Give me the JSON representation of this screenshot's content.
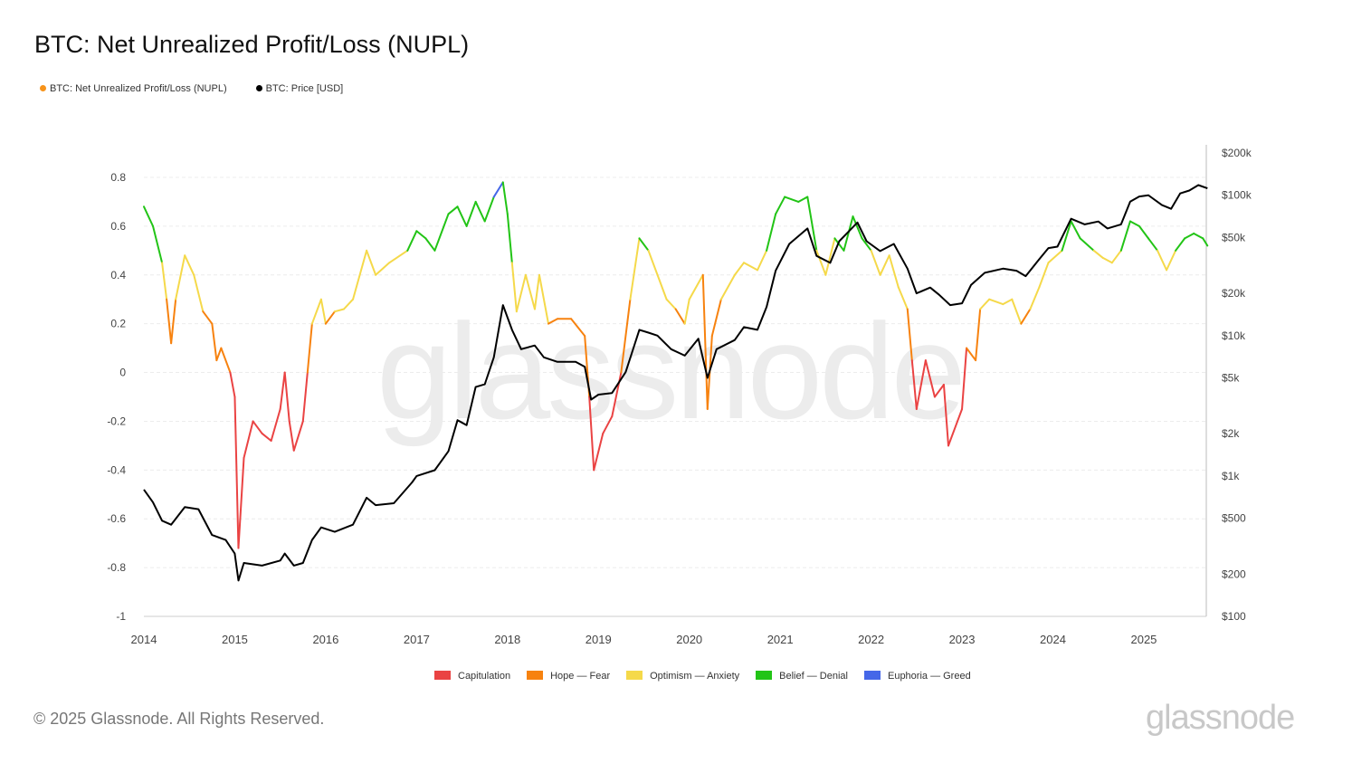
{
  "chart_data": {
    "type": "line",
    "title": "BTC: Net Unrealized Profit/Loss (NUPL)",
    "legend": [
      {
        "label": "BTC: Net Unrealized Profit/Loss (NUPL)",
        "color": "#f7931a"
      },
      {
        "label": "BTC: Price [USD]",
        "color": "#000000"
      }
    ],
    "zones": [
      {
        "label": "Capitulation",
        "color": "#ea4343",
        "min": -1,
        "max": 0
      },
      {
        "label": "Hope — Fear",
        "color": "#f7820f",
        "min": 0,
        "max": 0.25
      },
      {
        "label": "Optimism — Anxiety",
        "color": "#f5d94a",
        "min": 0.25,
        "max": 0.5
      },
      {
        "label": "Belief — Denial",
        "color": "#22c416",
        "min": 0.5,
        "max": 0.75
      },
      {
        "label": "Euphoria — Greed",
        "color": "#4567e8",
        "min": 0.75,
        "max": 1
      }
    ],
    "x_ticks": [
      "2014",
      "2015",
      "2016",
      "2017",
      "2018",
      "2019",
      "2020",
      "2021",
      "2022",
      "2023",
      "2024",
      "2025"
    ],
    "xlim": [
      2014,
      2025.7
    ],
    "y_left_ticks": [
      "0.8",
      "0.6",
      "0.4",
      "0.2",
      "0",
      "-0.2",
      "-0.4",
      "-0.6",
      "-0.8",
      "-1"
    ],
    "ylim_left": [
      -1,
      0.8
    ],
    "y_right_ticks": [
      {
        "label": "$200k",
        "value": 200000
      },
      {
        "label": "$100k",
        "value": 100000
      },
      {
        "label": "$50k",
        "value": 50000
      },
      {
        "label": "$20k",
        "value": 20000
      },
      {
        "label": "$10k",
        "value": 10000
      },
      {
        "label": "$5k",
        "value": 5000
      },
      {
        "label": "$2k",
        "value": 2000
      },
      {
        "label": "$1k",
        "value": 1000
      },
      {
        "label": "$500",
        "value": 500
      },
      {
        "label": "$200",
        "value": 200
      },
      {
        "label": "$100",
        "value": 100
      }
    ],
    "ylim_right_log": [
      100,
      200000
    ],
    "nupl": [
      [
        2014.0,
        0.68
      ],
      [
        2014.1,
        0.6
      ],
      [
        2014.2,
        0.45
      ],
      [
        2014.25,
        0.3
      ],
      [
        2014.3,
        0.12
      ],
      [
        2014.35,
        0.3
      ],
      [
        2014.45,
        0.48
      ],
      [
        2014.55,
        0.4
      ],
      [
        2014.65,
        0.25
      ],
      [
        2014.75,
        0.2
      ],
      [
        2014.8,
        0.05
      ],
      [
        2014.85,
        0.1
      ],
      [
        2014.95,
        0.0
      ],
      [
        2015.0,
        -0.1
      ],
      [
        2015.04,
        -0.72
      ],
      [
        2015.1,
        -0.35
      ],
      [
        2015.2,
        -0.2
      ],
      [
        2015.3,
        -0.25
      ],
      [
        2015.4,
        -0.28
      ],
      [
        2015.5,
        -0.15
      ],
      [
        2015.55,
        0.0
      ],
      [
        2015.6,
        -0.2
      ],
      [
        2015.65,
        -0.32
      ],
      [
        2015.75,
        -0.2
      ],
      [
        2015.8,
        0.0
      ],
      [
        2015.85,
        0.2
      ],
      [
        2015.95,
        0.3
      ],
      [
        2016.0,
        0.2
      ],
      [
        2016.1,
        0.25
      ],
      [
        2016.2,
        0.26
      ],
      [
        2016.3,
        0.3
      ],
      [
        2016.45,
        0.5
      ],
      [
        2016.55,
        0.4
      ],
      [
        2016.7,
        0.45
      ],
      [
        2016.9,
        0.5
      ],
      [
        2017.0,
        0.58
      ],
      [
        2017.1,
        0.55
      ],
      [
        2017.2,
        0.5
      ],
      [
        2017.35,
        0.65
      ],
      [
        2017.45,
        0.68
      ],
      [
        2017.55,
        0.6
      ],
      [
        2017.65,
        0.7
      ],
      [
        2017.75,
        0.62
      ],
      [
        2017.85,
        0.72
      ],
      [
        2017.95,
        0.78
      ],
      [
        2018.0,
        0.65
      ],
      [
        2018.05,
        0.45
      ],
      [
        2018.1,
        0.25
      ],
      [
        2018.2,
        0.4
      ],
      [
        2018.3,
        0.26
      ],
      [
        2018.35,
        0.4
      ],
      [
        2018.45,
        0.2
      ],
      [
        2018.55,
        0.22
      ],
      [
        2018.7,
        0.22
      ],
      [
        2018.85,
        0.15
      ],
      [
        2018.9,
        -0.1
      ],
      [
        2018.95,
        -0.4
      ],
      [
        2019.05,
        -0.25
      ],
      [
        2019.15,
        -0.18
      ],
      [
        2019.25,
        0.0
      ],
      [
        2019.35,
        0.3
      ],
      [
        2019.45,
        0.55
      ],
      [
        2019.55,
        0.5
      ],
      [
        2019.65,
        0.4
      ],
      [
        2019.75,
        0.3
      ],
      [
        2019.85,
        0.26
      ],
      [
        2019.95,
        0.2
      ],
      [
        2020.0,
        0.3
      ],
      [
        2020.15,
        0.4
      ],
      [
        2020.2,
        -0.15
      ],
      [
        2020.25,
        0.15
      ],
      [
        2020.35,
        0.3
      ],
      [
        2020.5,
        0.4
      ],
      [
        2020.6,
        0.45
      ],
      [
        2020.75,
        0.42
      ],
      [
        2020.85,
        0.5
      ],
      [
        2020.95,
        0.65
      ],
      [
        2021.05,
        0.72
      ],
      [
        2021.2,
        0.7
      ],
      [
        2021.3,
        0.72
      ],
      [
        2021.4,
        0.5
      ],
      [
        2021.5,
        0.4
      ],
      [
        2021.6,
        0.55
      ],
      [
        2021.7,
        0.5
      ],
      [
        2021.8,
        0.64
      ],
      [
        2021.9,
        0.55
      ],
      [
        2022.0,
        0.5
      ],
      [
        2022.1,
        0.4
      ],
      [
        2022.2,
        0.48
      ],
      [
        2022.3,
        0.35
      ],
      [
        2022.4,
        0.26
      ],
      [
        2022.45,
        0.05
      ],
      [
        2022.5,
        -0.15
      ],
      [
        2022.6,
        0.05
      ],
      [
        2022.7,
        -0.1
      ],
      [
        2022.8,
        -0.05
      ],
      [
        2022.85,
        -0.3
      ],
      [
        2022.95,
        -0.2
      ],
      [
        2023.0,
        -0.15
      ],
      [
        2023.05,
        0.1
      ],
      [
        2023.15,
        0.05
      ],
      [
        2023.2,
        0.26
      ],
      [
        2023.3,
        0.3
      ],
      [
        2023.45,
        0.28
      ],
      [
        2023.55,
        0.3
      ],
      [
        2023.65,
        0.2
      ],
      [
        2023.75,
        0.26
      ],
      [
        2023.85,
        0.35
      ],
      [
        2023.95,
        0.45
      ],
      [
        2024.1,
        0.5
      ],
      [
        2024.2,
        0.62
      ],
      [
        2024.3,
        0.55
      ],
      [
        2024.45,
        0.5
      ],
      [
        2024.55,
        0.47
      ],
      [
        2024.65,
        0.45
      ],
      [
        2024.75,
        0.5
      ],
      [
        2024.85,
        0.62
      ],
      [
        2024.95,
        0.6
      ],
      [
        2025.05,
        0.55
      ],
      [
        2025.15,
        0.5
      ],
      [
        2025.25,
        0.42
      ],
      [
        2025.35,
        0.5
      ],
      [
        2025.45,
        0.55
      ],
      [
        2025.55,
        0.57
      ],
      [
        2025.65,
        0.55
      ],
      [
        2025.7,
        0.52
      ]
    ],
    "price": [
      [
        2014.0,
        800
      ],
      [
        2014.1,
        650
      ],
      [
        2014.2,
        480
      ],
      [
        2014.3,
        450
      ],
      [
        2014.45,
        600
      ],
      [
        2014.6,
        580
      ],
      [
        2014.75,
        380
      ],
      [
        2014.9,
        350
      ],
      [
        2015.0,
        280
      ],
      [
        2015.04,
        180
      ],
      [
        2015.1,
        240
      ],
      [
        2015.3,
        230
      ],
      [
        2015.5,
        250
      ],
      [
        2015.55,
        280
      ],
      [
        2015.65,
        230
      ],
      [
        2015.75,
        240
      ],
      [
        2015.85,
        350
      ],
      [
        2015.95,
        430
      ],
      [
        2016.1,
        400
      ],
      [
        2016.3,
        450
      ],
      [
        2016.45,
        700
      ],
      [
        2016.55,
        620
      ],
      [
        2016.75,
        640
      ],
      [
        2016.95,
        900
      ],
      [
        2017.0,
        1000
      ],
      [
        2017.2,
        1100
      ],
      [
        2017.35,
        1500
      ],
      [
        2017.45,
        2500
      ],
      [
        2017.55,
        2300
      ],
      [
        2017.65,
        4300
      ],
      [
        2017.75,
        4500
      ],
      [
        2017.85,
        7000
      ],
      [
        2017.95,
        16500
      ],
      [
        2018.05,
        11000
      ],
      [
        2018.15,
        8000
      ],
      [
        2018.3,
        8500
      ],
      [
        2018.4,
        7000
      ],
      [
        2018.55,
        6500
      ],
      [
        2018.75,
        6500
      ],
      [
        2018.85,
        6000
      ],
      [
        2018.92,
        3500
      ],
      [
        2019.0,
        3800
      ],
      [
        2019.15,
        3900
      ],
      [
        2019.3,
        5500
      ],
      [
        2019.45,
        11000
      ],
      [
        2019.55,
        10500
      ],
      [
        2019.65,
        10000
      ],
      [
        2019.8,
        8000
      ],
      [
        2019.95,
        7200
      ],
      [
        2020.1,
        9500
      ],
      [
        2020.2,
        5000
      ],
      [
        2020.3,
        8000
      ],
      [
        2020.5,
        9300
      ],
      [
        2020.6,
        11500
      ],
      [
        2020.75,
        11000
      ],
      [
        2020.85,
        16000
      ],
      [
        2020.95,
        29000
      ],
      [
        2021.1,
        45000
      ],
      [
        2021.3,
        58000
      ],
      [
        2021.4,
        37000
      ],
      [
        2021.55,
        33000
      ],
      [
        2021.65,
        47000
      ],
      [
        2021.85,
        64000
      ],
      [
        2021.95,
        47000
      ],
      [
        2022.1,
        40000
      ],
      [
        2022.25,
        45000
      ],
      [
        2022.4,
        30000
      ],
      [
        2022.5,
        20000
      ],
      [
        2022.65,
        22000
      ],
      [
        2022.75,
        19500
      ],
      [
        2022.87,
        16500
      ],
      [
        2023.0,
        17000
      ],
      [
        2023.1,
        23000
      ],
      [
        2023.25,
        28000
      ],
      [
        2023.45,
        30000
      ],
      [
        2023.6,
        29000
      ],
      [
        2023.7,
        26500
      ],
      [
        2023.85,
        35000
      ],
      [
        2023.95,
        42000
      ],
      [
        2024.05,
        43000
      ],
      [
        2024.2,
        68000
      ],
      [
        2024.35,
        62000
      ],
      [
        2024.5,
        65000
      ],
      [
        2024.6,
        58000
      ],
      [
        2024.75,
        62000
      ],
      [
        2024.85,
        90000
      ],
      [
        2024.95,
        98000
      ],
      [
        2025.05,
        100000
      ],
      [
        2025.2,
        85000
      ],
      [
        2025.3,
        80000
      ],
      [
        2025.4,
        103000
      ],
      [
        2025.5,
        108000
      ],
      [
        2025.6,
        118000
      ],
      [
        2025.7,
        112000
      ]
    ]
  },
  "watermark": "glassnode",
  "footer": {
    "copyright": "© 2025 Glassnode. All Rights Reserved.",
    "logo": "glassnode"
  }
}
